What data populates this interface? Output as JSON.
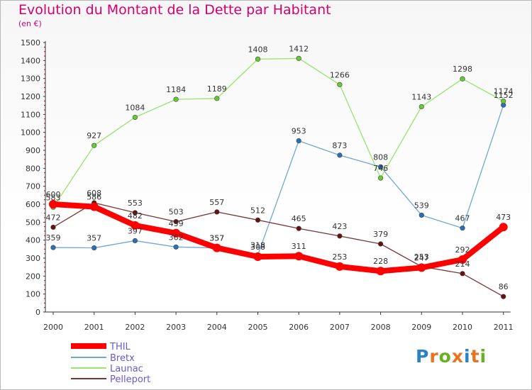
{
  "title": "Evolution du Montant de la Dette par Habitant",
  "subtitle": "(en €)",
  "logo": {
    "text": "Proxiti",
    "colors": [
      "#2b83c6",
      "#e8731c",
      "#6ab023",
      "#e8731c",
      "#2b83c6",
      "#e8731c",
      "#6ab023"
    ]
  },
  "chart_data": {
    "type": "line",
    "x": [
      "2000",
      "2001",
      "2002",
      "2003",
      "2004",
      "2005",
      "2006",
      "2007",
      "2008",
      "2009",
      "2010",
      "2011"
    ],
    "ylim": [
      0,
      1500
    ],
    "yticks": [
      0,
      100,
      200,
      300,
      400,
      500,
      600,
      700,
      800,
      900,
      1000,
      1100,
      1200,
      1300,
      1400,
      1500
    ],
    "grid": false,
    "legend_placement": "bottom-left",
    "series": [
      {
        "name": "THIL",
        "color": "#ff0000",
        "point_color": "#ff0000",
        "values": [
          600,
          586,
          482,
          439,
          357,
          308,
          311,
          253,
          228,
          247,
          292,
          473
        ]
      },
      {
        "name": "Bretx",
        "color": "#6fa8d6",
        "point_color": "#2a6fb8",
        "values": [
          359,
          357,
          397,
          362,
          357,
          318,
          953,
          873,
          808,
          539,
          467,
          1152
        ]
      },
      {
        "name": "Launac",
        "color": "#99e36f",
        "point_color": "#66cc33",
        "values": [
          583,
          927,
          1084,
          1184,
          1189,
          1408,
          1412,
          1266,
          746,
          1143,
          1298,
          1174
        ]
      },
      {
        "name": "Pelleport",
        "color": "#7a3535",
        "point_color": "#661111",
        "values": [
          472,
          608,
          553,
          503,
          557,
          512,
          465,
          423,
          379,
          253,
          214,
          86
        ]
      }
    ]
  }
}
